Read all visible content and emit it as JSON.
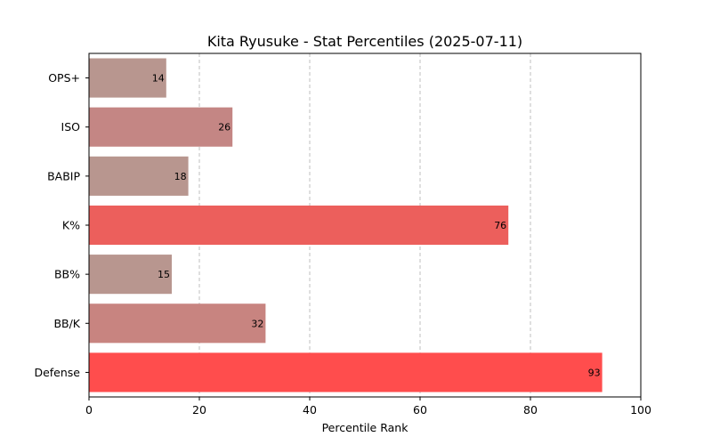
{
  "chart_data": {
    "type": "bar",
    "orientation": "horizontal",
    "title": "Kita Ryusuke - Stat Percentiles (2025-07-11)",
    "xlabel": "Percentile Rank",
    "ylabel": "",
    "xlim": [
      0,
      100
    ],
    "xticks": [
      0,
      20,
      40,
      60,
      80,
      100
    ],
    "grid": "x dashed",
    "categories": [
      "OPS+",
      "ISO",
      "BABIP",
      "K%",
      "BB%",
      "BB/K",
      "Defense"
    ],
    "values": [
      14,
      26,
      18,
      76,
      15,
      32,
      93
    ],
    "colors": [
      "#b8968f",
      "#c48684",
      "#b8968f",
      "#ec5f5c",
      "#b8968f",
      "#c88480",
      "#ff4d4d"
    ]
  }
}
